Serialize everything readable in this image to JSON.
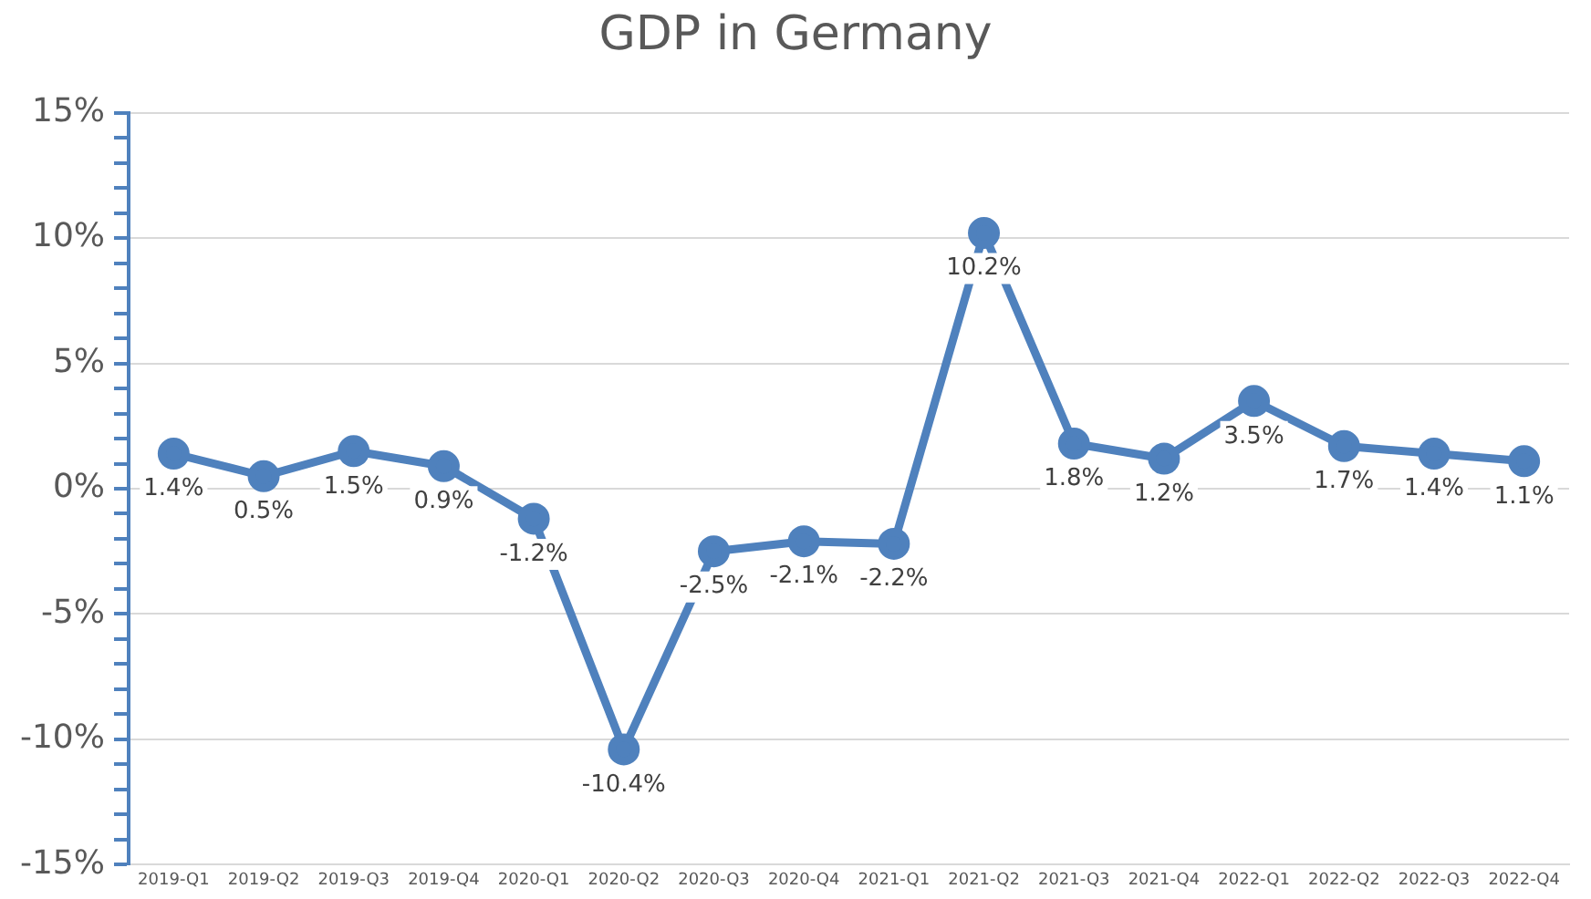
{
  "chart_data": {
    "type": "line",
    "title": "GDP in Germany",
    "categories": [
      "2019-Q1",
      "2019-Q2",
      "2019-Q3",
      "2019-Q4",
      "2020-Q1",
      "2020-Q2",
      "2020-Q3",
      "2020-Q4",
      "2021-Q1",
      "2021-Q2",
      "2021-Q3",
      "2021-Q4",
      "2022-Q1",
      "2022-Q2",
      "2022-Q3",
      "2022-Q4"
    ],
    "series": [
      {
        "color": "#4f81bd",
        "values": [
          1.4,
          0.5,
          1.5,
          0.9,
          -1.2,
          -10.4,
          -2.5,
          -2.1,
          -2.2,
          10.2,
          1.8,
          1.2,
          3.5,
          1.7,
          1.4,
          1.1
        ],
        "value_labels": [
          "1.4%",
          "0.5%",
          "1.5%",
          "0.9%",
          "-1.2%",
          "-10.4%",
          "-2.5%",
          "-2.1%",
          "-2.2%",
          "10.2%",
          "1.8%",
          "1.2%",
          "3.5%",
          "1.7%",
          "1.4%",
          "1.1%"
        ]
      }
    ],
    "ylim": [
      -15,
      15
    ],
    "yticks": [
      {
        "value": -15,
        "label": "-15%"
      },
      {
        "value": -14,
        "label": null
      },
      {
        "value": -13,
        "label": null
      },
      {
        "value": -12,
        "label": null
      },
      {
        "value": -11,
        "label": null
      },
      {
        "value": -10,
        "label": "-10%"
      },
      {
        "value": -9,
        "label": null
      },
      {
        "value": -8,
        "label": null
      },
      {
        "value": -7,
        "label": null
      },
      {
        "value": -6,
        "label": null
      },
      {
        "value": -5,
        "label": "-5%"
      },
      {
        "value": -4,
        "label": null
      },
      {
        "value": -3,
        "label": null
      },
      {
        "value": -2,
        "label": null
      },
      {
        "value": -1,
        "label": null
      },
      {
        "value": 0,
        "label": "0%"
      },
      {
        "value": 1,
        "label": null
      },
      {
        "value": 2,
        "label": null
      },
      {
        "value": 3,
        "label": null
      },
      {
        "value": 4,
        "label": null
      },
      {
        "value": 5,
        "label": "5%"
      },
      {
        "value": 6,
        "label": null
      },
      {
        "value": 7,
        "label": null
      },
      {
        "value": 8,
        "label": null
      },
      {
        "value": 9,
        "label": null
      },
      {
        "value": 10,
        "label": "10%"
      },
      {
        "value": 11,
        "label": null
      },
      {
        "value": 12,
        "label": null
      },
      {
        "value": 13,
        "label": null
      },
      {
        "value": 14,
        "label": null
      },
      {
        "value": 15,
        "label": "15%"
      }
    ],
    "grid": "y",
    "legend": false,
    "marker": "circle",
    "line_style": "solid"
  }
}
